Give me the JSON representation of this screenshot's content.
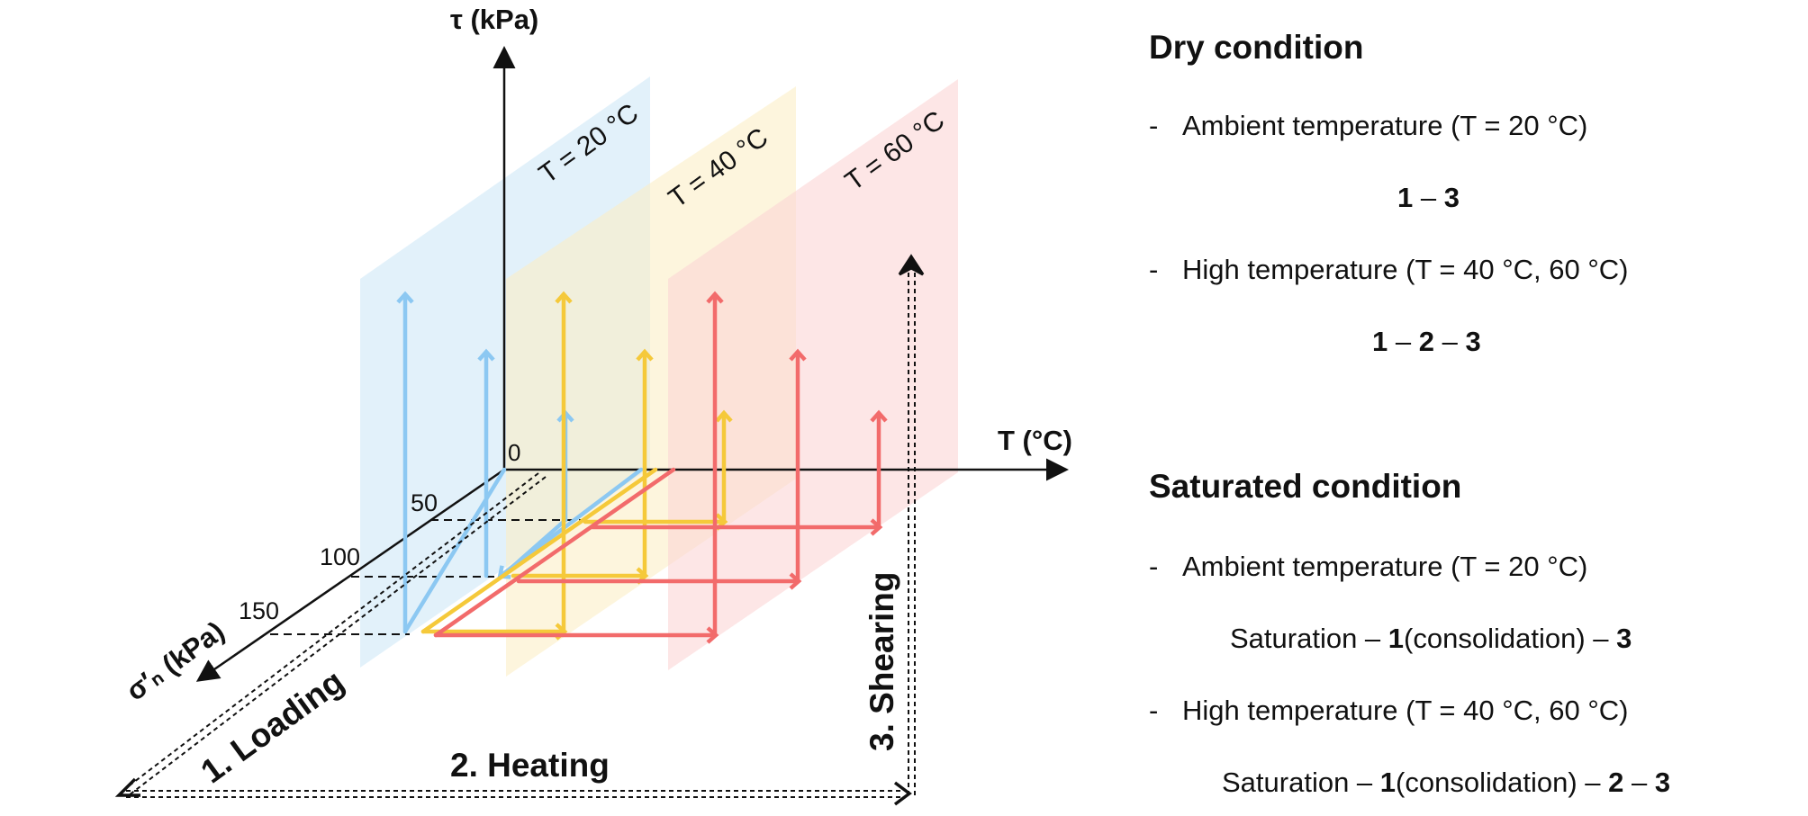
{
  "diagram": {
    "axes": {
      "tau_label": "τ (kPa)",
      "temp_label": "T (°C)",
      "sigma_label": "σ′ₙ (kPa)",
      "origin": "0",
      "sigma_ticks": [
        "50",
        "100",
        "150"
      ]
    },
    "planes": [
      {
        "label": "T = 20 °C",
        "color": "#cfe8f7"
      },
      {
        "label": "T = 40 °C",
        "color": "#fbeec7"
      },
      {
        "label": "T = 60 °C",
        "color": "#fbd6d6"
      }
    ],
    "path_colors": {
      "t20": "#8cc8f2",
      "t40": "#f5c93a",
      "t60": "#f26b6b"
    },
    "steps": {
      "loading": "1. Loading",
      "heating": "2. Heating",
      "shearing": "3. Shearing"
    }
  },
  "legend": {
    "dry": {
      "title": "Dry condition",
      "ambient": "Ambient temperature (T = 20 °C)",
      "ambient_seq": [
        "1",
        "–",
        "3"
      ],
      "high": "High temperature (T = 40 °C, 60 °C)",
      "high_seq": [
        "1",
        "–",
        "2",
        "–",
        "3"
      ]
    },
    "saturated": {
      "title": "Saturated condition",
      "ambient": "Ambient temperature (T = 20 °C)",
      "ambient_seq": {
        "pre": "Saturation – ",
        "s1": "1",
        "mid": "(consolidation) – ",
        "s3": "3"
      },
      "high": "High temperature (T = 40 °C, 60 °C)",
      "high_seq": {
        "pre": "Saturation – ",
        "s1": "1",
        "mid": "(consolidation) – ",
        "s2": "2",
        "sep": " – ",
        "s3": "3"
      }
    },
    "bullet": "-"
  }
}
